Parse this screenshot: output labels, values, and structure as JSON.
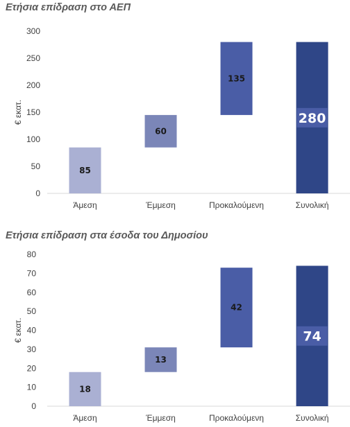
{
  "chart_data": [
    {
      "type": "bar",
      "title": "Ετήσια επίδραση στο ΑΕΠ",
      "ylabel": "€ εκατ.",
      "ylim": [
        0,
        300
      ],
      "yticks": [
        0,
        50,
        100,
        150,
        200,
        250,
        300
      ],
      "categories": [
        "Άμεση",
        "Έμμεση",
        "Προκαλούμενη",
        "Συνολική"
      ],
      "bars": [
        {
          "label": "85",
          "base": 0,
          "value": 85,
          "color": "#aab0d3"
        },
        {
          "label": "60",
          "base": 85,
          "value": 60,
          "color": "#7b86b8"
        },
        {
          "label": "135",
          "base": 145,
          "value": 135,
          "color": "#4a5da6"
        },
        {
          "label": "280",
          "base": 0,
          "value": 280,
          "color": "#2f4687",
          "highlight": true
        }
      ],
      "grid": false
    },
    {
      "type": "bar",
      "title": "Ετήσια επίδραση στα έσοδα του Δημοσίου",
      "ylabel": "€ εκατ.",
      "ylim": [
        0,
        80
      ],
      "yticks": [
        0,
        10,
        20,
        30,
        40,
        50,
        60,
        70,
        80
      ],
      "categories": [
        "Άμεση",
        "Έμμεση",
        "Προκαλούμενη",
        "Συνολική"
      ],
      "bars": [
        {
          "label": "18",
          "base": 0,
          "value": 18,
          "color": "#aab0d3"
        },
        {
          "label": "13",
          "base": 18,
          "value": 13,
          "color": "#7b86b8"
        },
        {
          "label": "42",
          "base": 31,
          "value": 42,
          "color": "#4a5da6"
        },
        {
          "label": "74",
          "base": 0,
          "value": 74,
          "color": "#2f4687",
          "highlight": true
        }
      ],
      "grid": false
    }
  ]
}
